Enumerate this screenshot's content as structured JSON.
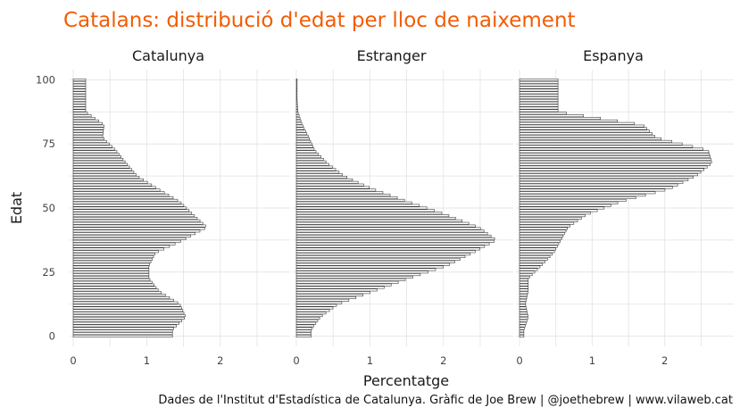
{
  "chart_data": {
    "type": "bar",
    "orientation": "horizontal",
    "title": "Catalans: distribució d'edat per lloc de naixement",
    "xlabel": "Percentatge",
    "ylabel": "Edat",
    "caption": "Dades de l'Institut d'Estadística de Catalunya. Gràfic de Joe Brew | @joethebrew | www.vilaweb.cat",
    "y_ticks": [
      0,
      25,
      50,
      75,
      100
    ],
    "ylim": [
      -4,
      104
    ],
    "x_ticks": [
      0,
      1,
      2
    ],
    "grid": true,
    "facets": [
      {
        "name": "Catalunya",
        "xlim": [
          -0.1,
          2.85
        ],
        "x_tick_labels": [
          "0",
          "1",
          "2"
        ],
        "ages": [
          0,
          2.5,
          7.5,
          12.5,
          17.5,
          22.5,
          27.5,
          32.5,
          37.5,
          42.5,
          47.5,
          52.5,
          57.5,
          62.5,
          67.5,
          72.5,
          77.5,
          82.5,
          87.5,
          92.5,
          97.5
        ],
        "values": [
          1.35,
          1.35,
          1.53,
          1.45,
          1.17,
          1.03,
          1.03,
          1.12,
          1.5,
          1.82,
          1.63,
          1.45,
          1.15,
          0.87,
          0.72,
          0.58,
          0.4,
          0.42,
          0.17,
          0.17,
          0.17
        ]
      },
      {
        "name": "Estranger",
        "xlim": [
          -0.1,
          2.85
        ],
        "x_tick_labels": [
          "0",
          "1",
          "2"
        ],
        "ages": [
          0,
          2.5,
          7.5,
          12.5,
          17.5,
          22.5,
          27.5,
          32.5,
          37.5,
          42.5,
          47.5,
          52.5,
          57.5,
          62.5,
          67.5,
          72.5,
          77.5,
          82.5,
          87.5,
          92.5,
          97.5
        ],
        "values": [
          0.2,
          0.2,
          0.33,
          0.57,
          1.05,
          1.53,
          2.05,
          2.4,
          2.72,
          2.48,
          2.03,
          1.52,
          1.03,
          0.65,
          0.42,
          0.25,
          0.17,
          0.08,
          0.02,
          0.01,
          0.01
        ],
        "bar_count": 55
      },
      {
        "name": "Espanya",
        "xlim": [
          -0.1,
          2.85
        ],
        "x_tick_labels": [
          "0",
          "1",
          "2"
        ],
        "ages": [
          0,
          2.5,
          7.5,
          12.5,
          17.5,
          22.5,
          27.5,
          32.5,
          37.5,
          42.5,
          47.5,
          52.5,
          57.5,
          62.5,
          67.5,
          72.5,
          77.5,
          82.5,
          87.5,
          92.5,
          97.5
        ],
        "values": [
          0.06,
          0.06,
          0.12,
          0.08,
          0.12,
          0.12,
          0.3,
          0.47,
          0.57,
          0.67,
          0.93,
          1.4,
          2.07,
          2.43,
          2.65,
          2.6,
          1.88,
          1.7,
          0.53,
          0.53,
          0.53
        ]
      }
    ]
  }
}
